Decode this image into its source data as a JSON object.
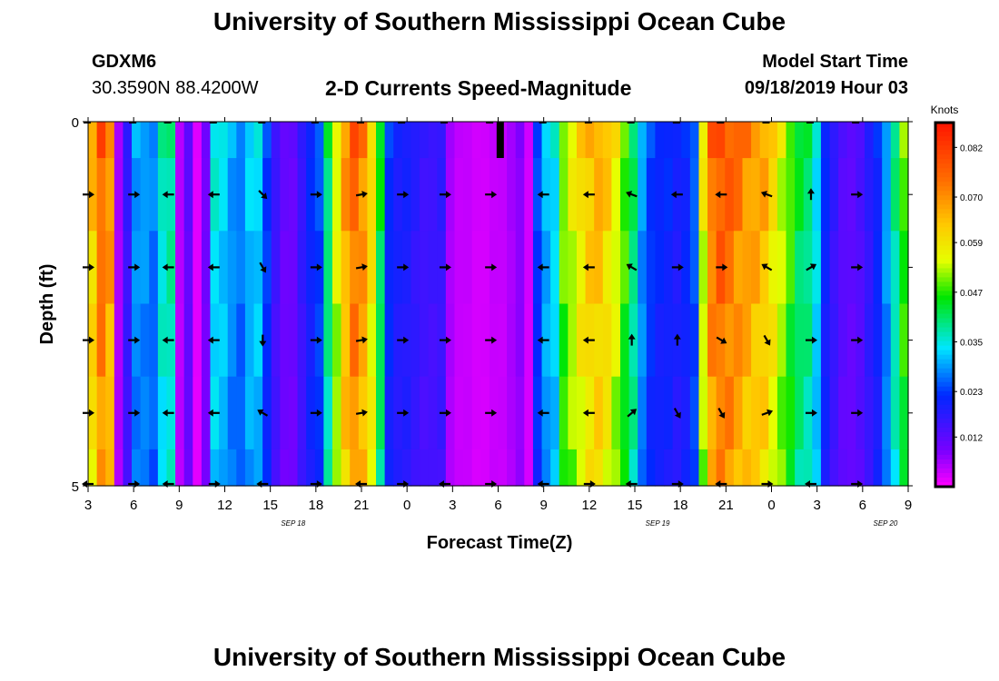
{
  "header": {
    "title_top": "University of Southern Mississippi Ocean Cube",
    "title_bottom": "University of Southern Mississippi Ocean Cube",
    "station": "GDXM6",
    "coords": "30.3590N 88.4200W",
    "product": "2-D Currents Speed-Magnitude",
    "model_start_label": "Model Start Time",
    "model_start_value": "09/18/2019 Hour 03"
  },
  "chart_data": {
    "type": "heatmap",
    "title": "2-D Currents Speed-Magnitude",
    "xlabel": "Forecast Time(Z)",
    "ylabel": "Depth (ft)",
    "x_tick_labels": [
      "3",
      "6",
      "9",
      "12",
      "15",
      "18",
      "21",
      "0",
      "3",
      "6",
      "9",
      "12",
      "15",
      "18",
      "21",
      "0",
      "3",
      "6",
      "9"
    ],
    "date_labels": [
      {
        "text": "SEP 18",
        "after_tick": 4
      },
      {
        "text": "SEP 19",
        "after_tick": 12
      },
      {
        "text": "SEP 20",
        "after_tick": 17
      }
    ],
    "y_tick_labels": [
      "0",
      "5"
    ],
    "ylim": [
      0,
      5
    ],
    "colorbar": {
      "unit": "Knots",
      "range": [
        0.0,
        0.088
      ],
      "tick_labels": [
        "0.082",
        "0.070",
        "0.059",
        "0.047",
        "0.035",
        "0.023",
        "0.012"
      ],
      "tick_values": [
        0.082,
        0.07,
        0.059,
        0.047,
        0.035,
        0.023,
        0.012
      ]
    },
    "layer_depths_ft": [
      0.2,
      0.8,
      1.6,
      2.5,
      3.4,
      4.2,
      4.9
    ],
    "speed_profile_columns": [
      0.066,
      0.078,
      0.072,
      0.006,
      0.017,
      0.03,
      0.03,
      0.028,
      0.038,
      0.04,
      0.005,
      0.012,
      0.002,
      0.01,
      0.036,
      0.034,
      0.03,
      0.028,
      0.033,
      0.034,
      0.024,
      0.016,
      0.011,
      0.011,
      0.017,
      0.022,
      0.025,
      0.042,
      0.057,
      0.07,
      0.078,
      0.073,
      0.062,
      0.045,
      0.023,
      0.02,
      0.02,
      0.018,
      0.016,
      0.016,
      0.017,
      0.006,
      0.004,
      0.004,
      0.003,
      0.003,
      0.004,
      0.004,
      0.006,
      0.008,
      0.003,
      0.024,
      0.032,
      0.035,
      0.052,
      0.057,
      0.062,
      0.066,
      0.068,
      0.064,
      0.058,
      0.05,
      0.042,
      0.03,
      0.024,
      0.022,
      0.022,
      0.02,
      0.022,
      0.026,
      0.058,
      0.076,
      0.08,
      0.078,
      0.075,
      0.072,
      0.07,
      0.068,
      0.062,
      0.056,
      0.05,
      0.044,
      0.042,
      0.035,
      0.022,
      0.017,
      0.013,
      0.012,
      0.014,
      0.018,
      0.022,
      0.03,
      0.04,
      0.05
    ],
    "arrows": {
      "column_hours": [
        3,
        6,
        8.3,
        11.3,
        14.5,
        18,
        21,
        23.7,
        26.5,
        29.5,
        33,
        36,
        38.8,
        41.8,
        44.7,
        47.7,
        50.6,
        53.6
      ],
      "rows": [
        {
          "depth_ft": 1.0,
          "angles_deg": [
            0,
            0,
            180,
            180,
            45,
            0,
            -10,
            0,
            0,
            0,
            180,
            180,
            200,
            180,
            180,
            200,
            270,
            0
          ]
        },
        {
          "depth_ft": 2.0,
          "angles_deg": [
            0,
            0,
            180,
            180,
            60,
            0,
            -10,
            0,
            0,
            0,
            180,
            180,
            210,
            0,
            0,
            210,
            -30,
            0
          ]
        },
        {
          "depth_ft": 3.0,
          "angles_deg": [
            0,
            0,
            180,
            180,
            90,
            0,
            -10,
            0,
            0,
            0,
            180,
            180,
            270,
            270,
            30,
            60,
            0,
            0
          ]
        },
        {
          "depth_ft": 4.0,
          "angles_deg": [
            0,
            0,
            180,
            180,
            210,
            0,
            -10,
            0,
            0,
            0,
            180,
            180,
            -40,
            60,
            60,
            -20,
            0,
            0
          ]
        }
      ]
    }
  }
}
